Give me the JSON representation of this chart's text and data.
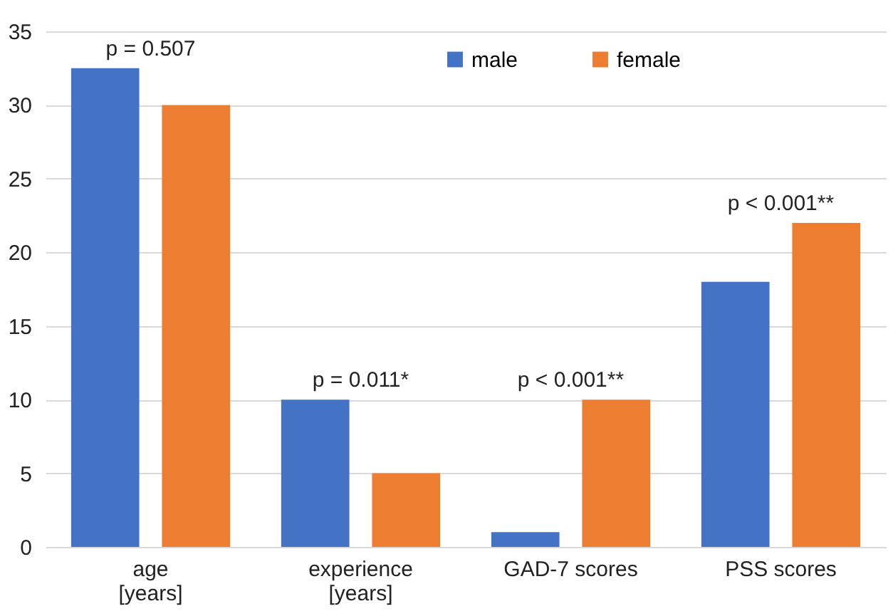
{
  "chart_data": {
    "type": "bar",
    "categories": [
      "age\n[years]",
      "experience\n[years]",
      "GAD-7 scores",
      "PSS scores"
    ],
    "series": [
      {
        "name": "male",
        "color": "#4472c4",
        "values": [
          32.5,
          10,
          1,
          18
        ]
      },
      {
        "name": "female",
        "color": "#ed7d31",
        "values": [
          30,
          5,
          10,
          22
        ]
      }
    ],
    "ylim": [
      0,
      35
    ],
    "yticks": [
      0,
      5,
      10,
      15,
      20,
      25,
      30,
      35
    ],
    "grid": "y",
    "legend": "top",
    "annotations": [
      "p = 0.507",
      "p = 0.011*",
      "p < 0.001**",
      "p < 0.001**"
    ]
  }
}
